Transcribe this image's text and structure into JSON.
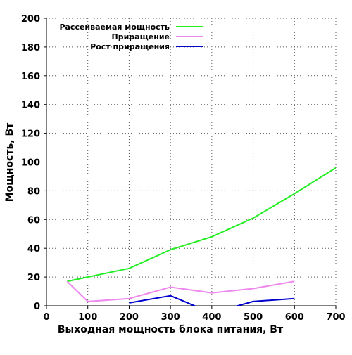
{
  "chart_data": {
    "type": "line",
    "title": "",
    "xlabel": "Выходная мощность блока питания, Вт",
    "ylabel": "Мощность, Вт",
    "xlim": [
      0,
      700
    ],
    "ylim": [
      0,
      200
    ],
    "x_ticks": [
      "0",
      "100",
      "200",
      "300",
      "400",
      "500",
      "600",
      "700"
    ],
    "y_ticks": [
      "0",
      "20",
      "40",
      "60",
      "80",
      "100",
      "120",
      "140",
      "160",
      "180",
      "200"
    ],
    "grid": true,
    "legend_position": "top-left",
    "series": [
      {
        "name": "Рассеиваемая мощность",
        "color": "#22ee22",
        "points": [
          [
            50,
            17
          ],
          [
            100,
            20
          ],
          [
            200,
            26
          ],
          [
            300,
            39
          ],
          [
            400,
            48
          ],
          [
            500,
            61
          ],
          [
            600,
            78
          ],
          [
            700,
            96
          ]
        ]
      },
      {
        "name": "Приращение",
        "color": "#ee88ee",
        "points": [
          [
            50,
            17
          ],
          [
            100,
            3
          ],
          [
            200,
            5
          ],
          [
            300,
            13
          ],
          [
            400,
            9
          ],
          [
            500,
            12
          ],
          [
            600,
            17
          ]
        ]
      },
      {
        "name": "Рост приращения",
        "color": "#0000cc",
        "points": [
          [
            200,
            2
          ],
          [
            300,
            7
          ],
          [
            400,
            -5
          ],
          [
            500,
            3
          ],
          [
            600,
            5
          ]
        ]
      }
    ]
  }
}
